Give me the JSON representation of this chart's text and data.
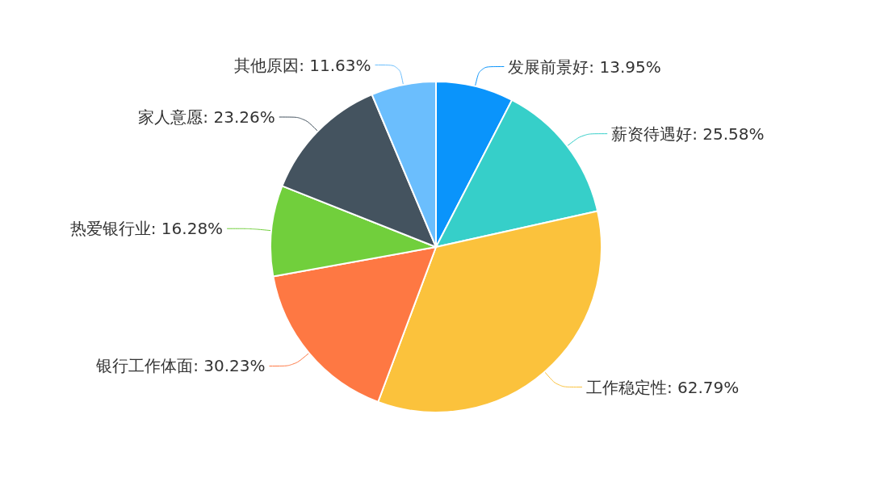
{
  "chart_data": {
    "type": "pie",
    "categories": [
      "发展前景好",
      "薪资待遇好",
      "工作稳定性",
      "银行工作体面",
      "热爱银行业",
      "家人意愿",
      "其他原因"
    ],
    "values": [
      13.95,
      25.58,
      62.79,
      30.23,
      16.28,
      23.26,
      11.63
    ],
    "value_labels": [
      "13.95%",
      "25.58%",
      "62.79%",
      "30.23%",
      "16.28%",
      "23.26%",
      "11.63%"
    ],
    "colors": [
      "#0a94fb",
      "#36cfc9",
      "#fbc23c",
      "#fe7843",
      "#71cf3c",
      "#44535f",
      "#6bbefd"
    ],
    "legend": false
  }
}
